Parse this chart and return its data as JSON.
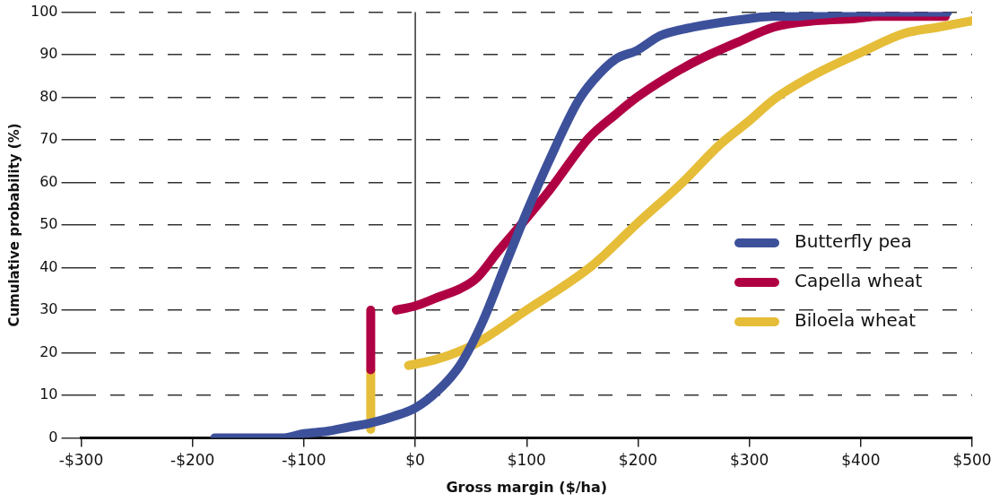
{
  "chart_data": {
    "type": "line",
    "xlabel": "Gross margin ($/ha)",
    "ylabel": "Cumulative probability (%)",
    "xlim": [
      -300,
      500
    ],
    "xticks": [
      {
        "value": -300,
        "label": "-$300"
      },
      {
        "value": -200,
        "label": "-$200"
      },
      {
        "value": -100,
        "label": "-$100"
      },
      {
        "value": 0,
        "label": "$0"
      },
      {
        "value": 100,
        "label": "$100"
      },
      {
        "value": 200,
        "label": "$200"
      },
      {
        "value": 300,
        "label": "$300"
      },
      {
        "value": 400,
        "label": "$400"
      },
      {
        "value": 500,
        "label": "$500"
      }
    ],
    "ylim": [
      0,
      100
    ],
    "yticks": [
      0,
      10,
      20,
      30,
      40,
      50,
      60,
      70,
      80,
      90,
      100
    ],
    "grid": "y",
    "legend": "right",
    "line_style": "solid",
    "marker": "none",
    "ref_lines": [
      {
        "axis": "x",
        "value": 0
      }
    ],
    "series": [
      {
        "name": "Butterfly pea",
        "color": "#3d519b",
        "x": [
          -180,
          -147,
          -140,
          -128,
          -123,
          -118,
          -100,
          -80,
          -60,
          -40,
          -20,
          0,
          20,
          40,
          60,
          80,
          100,
          120,
          146,
          160,
          180,
          199,
          220,
          250,
          300,
          322,
          340,
          362,
          398,
          427,
          478
        ],
        "values": [
          0,
          0,
          0,
          0,
          0,
          0,
          1,
          1.5,
          2.5,
          3.5,
          5,
          7,
          11,
          17,
          27,
          40,
          53,
          65,
          79,
          84,
          89,
          91,
          94.5,
          96.5,
          98.5,
          99,
          99,
          99.5,
          100,
          100,
          100
        ]
      },
      {
        "name": "Capella wheat",
        "color": "#b00044",
        "x": [
          -40,
          -40,
          -30,
          -17,
          0,
          20,
          40,
          55,
          75,
          98,
          120,
          156,
          180,
          199,
          225,
          252,
          290,
          322,
          360,
          395,
          415,
          431,
          450,
          476
        ],
        "values": [
          16,
          30,
          null,
          30,
          31,
          33,
          35,
          37.5,
          44,
          51,
          58,
          70.5,
          76,
          80,
          84.5,
          88.5,
          93,
          96.5,
          98,
          98.5,
          99,
          99,
          99,
          99
        ]
      },
      {
        "name": "Biloela wheat",
        "color": "#e6bd38",
        "x": [
          -40,
          -40,
          -20,
          -6,
          20,
          52,
          100,
          159,
          199,
          240,
          274,
          300,
          322,
          359,
          400,
          439,
          470,
          500
        ],
        "values": [
          2,
          16,
          null,
          17,
          18.5,
          21.8,
          30,
          40.5,
          50.3,
          60,
          69,
          74.5,
          79.5,
          85.4,
          90.5,
          95,
          96.5,
          98
        ]
      }
    ]
  }
}
